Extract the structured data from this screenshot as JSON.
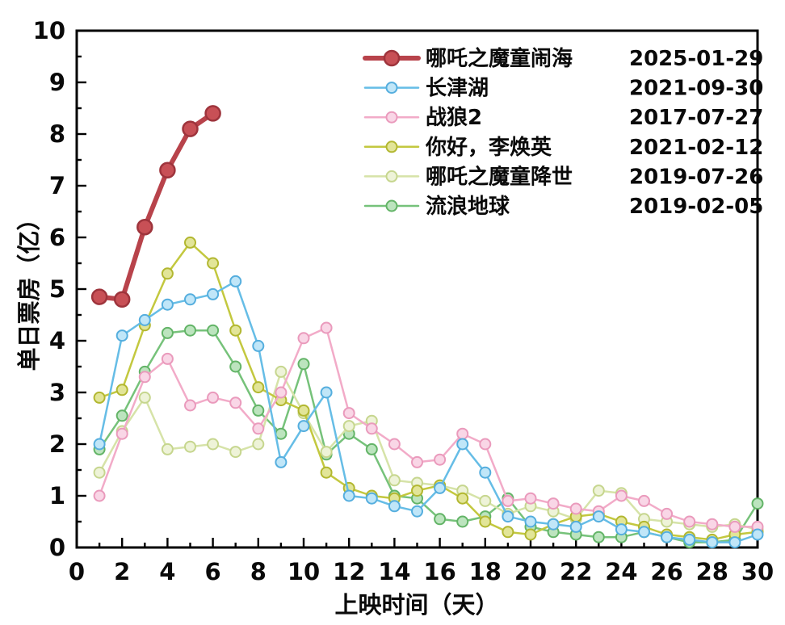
{
  "chart_data": {
    "type": "line",
    "title": "",
    "xlabel": "上映时间（天）",
    "ylabel": "单日票房（亿）",
    "xlim": [
      0,
      30
    ],
    "ylim": [
      0,
      10
    ],
    "xtick_step": 2,
    "ytick_step": 1,
    "grid": false,
    "legend_position": "inside-top-right",
    "days": [
      1,
      2,
      3,
      4,
      5,
      6,
      7,
      8,
      9,
      10,
      11,
      12,
      13,
      14,
      15,
      16,
      17,
      18,
      19,
      20,
      21,
      22,
      23,
      24,
      25,
      26,
      27,
      28,
      29,
      30
    ],
    "series": [
      {
        "name": "哪吒之魔童闹海",
        "date": "2025-01-29",
        "color": "#b8434b",
        "edge": "#9e343c",
        "fill": "#c85056",
        "line_width": 6,
        "marker_r": 9,
        "values": [
          4.85,
          4.8,
          6.2,
          7.3,
          8.1,
          8.4
        ]
      },
      {
        "name": "长津湖",
        "date": "2021-09-30",
        "color": "#66bde6",
        "edge": "#55aede",
        "fill": "#c0e6f8",
        "line_width": 2.5,
        "marker_r": 6.5,
        "values": [
          2.0,
          4.1,
          4.4,
          4.7,
          4.8,
          4.9,
          5.15,
          3.9,
          1.65,
          2.35,
          3.0,
          1.0,
          0.95,
          0.8,
          0.7,
          1.15,
          2.0,
          1.45,
          0.6,
          0.5,
          0.45,
          0.4,
          0.6,
          0.35,
          0.3,
          0.2,
          0.15,
          0.1,
          0.1,
          0.25
        ]
      },
      {
        "name": "战狼2",
        "date": "2017-07-27",
        "color": "#f2abc8",
        "edge": "#ea9abc",
        "fill": "#f9d6e6",
        "line_width": 2.5,
        "marker_r": 6.5,
        "values": [
          1.0,
          2.2,
          3.3,
          3.65,
          2.75,
          2.9,
          2.8,
          2.3,
          3.0,
          4.05,
          4.25,
          2.6,
          2.3,
          2.0,
          1.65,
          1.7,
          2.2,
          2.0,
          0.9,
          0.95,
          0.85,
          0.75,
          0.7,
          1.0,
          0.9,
          0.65,
          0.5,
          0.45,
          0.4,
          0.4
        ]
      },
      {
        "name": "你好，李焕英",
        "date": "2021-02-12",
        "color": "#c3c83f",
        "edge": "#b2b730",
        "fill": "#e2e598",
        "line_width": 2.5,
        "marker_r": 6.5,
        "values": [
          2.9,
          3.05,
          4.3,
          5.3,
          5.9,
          5.5,
          4.2,
          3.1,
          2.85,
          2.65,
          1.45,
          1.15,
          1.0,
          0.95,
          1.1,
          1.2,
          0.95,
          0.5,
          0.3,
          0.25,
          0.45,
          0.6,
          0.65,
          0.5,
          0.4,
          0.25,
          0.2,
          0.15,
          0.25,
          0.3
        ]
      },
      {
        "name": "哪吒之魔童降世",
        "date": "2019-07-26",
        "color": "#d6e3a8",
        "edge": "#c6d68e",
        "fill": "#eef3d8",
        "line_width": 2.5,
        "marker_r": 6.5,
        "values": [
          1.45,
          2.25,
          2.9,
          1.9,
          1.95,
          2.0,
          1.85,
          2.0,
          3.4,
          2.6,
          1.85,
          2.35,
          2.45,
          1.3,
          1.25,
          1.2,
          1.1,
          0.9,
          0.65,
          0.8,
          0.7,
          0.55,
          1.1,
          1.05,
          0.55,
          0.5,
          0.45,
          0.4,
          0.45,
          0.35
        ]
      },
      {
        "name": "流浪地球",
        "date": "2019-02-05",
        "color": "#76c27a",
        "edge": "#63b467",
        "fill": "#bce4be",
        "line_width": 2.5,
        "marker_r": 6.5,
        "values": [
          1.9,
          2.55,
          3.4,
          4.15,
          4.2,
          4.2,
          3.5,
          2.65,
          2.2,
          3.55,
          1.8,
          2.2,
          1.9,
          1.0,
          0.95,
          0.55,
          0.5,
          0.6,
          0.95,
          0.4,
          0.3,
          0.25,
          0.2,
          0.2,
          0.3,
          0.2,
          0.1,
          0.1,
          0.15,
          0.85
        ]
      }
    ]
  }
}
